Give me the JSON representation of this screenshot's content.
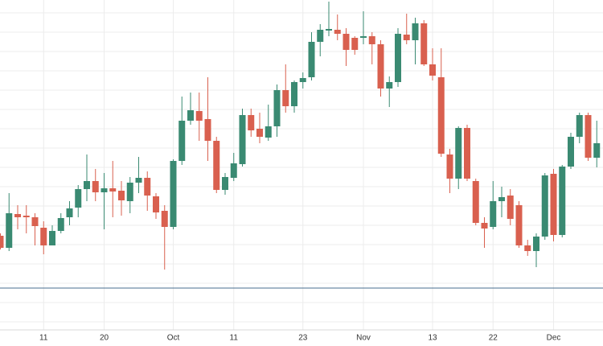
{
  "chart_data": {
    "type": "candlestick",
    "categories": [
      null,
      null,
      null,
      null,
      null,
      "11",
      null,
      null,
      null,
      null,
      null,
      null,
      "20",
      null,
      null,
      null,
      null,
      null,
      null,
      null,
      "Oct",
      null,
      null,
      null,
      null,
      null,
      null,
      "11",
      null,
      null,
      null,
      null,
      null,
      null,
      null,
      "23",
      null,
      null,
      null,
      null,
      null,
      null,
      "Nov",
      null,
      null,
      null,
      null,
      null,
      null,
      null,
      "13",
      null,
      null,
      null,
      null,
      null,
      null,
      "22",
      null,
      null,
      null,
      null,
      null,
      null,
      "Dec",
      null,
      null,
      null,
      null,
      null
    ],
    "open": [
      117,
      102,
      144,
      142,
      140,
      127,
      105,
      123,
      140,
      152,
      175,
      185,
      171,
      176,
      173,
      160,
      183,
      189,
      166,
      148,
      128,
      210,
      260,
      272,
      262,
      235,
      174,
      189,
      206,
      267,
      250,
      239,
      253,
      298,
      278,
      308,
      314,
      358,
      372,
      373,
      368,
      363,
      363,
      365,
      355,
      300,
      308,
      367,
      360,
      381,
      330,
      314,
      218,
      188,
      251,
      185,
      133,
      128,
      160,
      167,
      155,
      105,
      98,
      116,
      194,
      118,
      203,
      240,
      267,
      214
    ],
    "high": [
      120,
      170,
      155,
      155,
      145,
      135,
      130,
      145,
      160,
      180,
      218,
      200,
      195,
      210,
      185,
      190,
      215,
      197,
      170,
      155,
      212,
      290,
      295,
      295,
      314,
      240,
      195,
      220,
      275,
      275,
      270,
      280,
      305,
      330,
      310,
      320,
      370,
      380,
      408,
      392,
      375,
      365,
      396,
      370,
      360,
      315,
      375,
      393,
      388,
      385,
      350,
      350,
      225,
      253,
      255,
      188,
      140,
      185,
      178,
      175,
      160,
      112,
      120,
      195,
      200,
      205,
      245,
      270,
      270,
      260
    ],
    "low": [
      100,
      98,
      125,
      120,
      105,
      94,
      105,
      120,
      130,
      140,
      160,
      160,
      125,
      140,
      142,
      145,
      170,
      148,
      138,
      75,
      125,
      205,
      255,
      235,
      210,
      170,
      168,
      185,
      203,
      240,
      232,
      235,
      240,
      270,
      270,
      300,
      310,
      340,
      365,
      360,
      328,
      342,
      355,
      330,
      290,
      277,
      302,
      355,
      330,
      328,
      310,
      215,
      170,
      175,
      185,
      130,
      102,
      125,
      140,
      130,
      102,
      92,
      78,
      112,
      110,
      115,
      200,
      232,
      210,
      202
    ],
    "close": [
      102,
      145,
      140,
      140,
      129,
      105,
      123,
      139,
      151,
      175,
      185,
      171,
      176,
      172,
      161,
      183,
      189,
      167,
      146,
      128,
      210,
      260,
      273,
      260,
      235,
      174,
      190,
      207,
      267,
      248,
      240,
      253,
      298,
      278,
      308,
      313,
      358,
      373,
      374,
      368,
      348,
      348,
      365,
      355,
      300,
      308,
      368,
      360,
      381,
      330,
      316,
      219,
      188,
      251,
      188,
      133,
      126,
      160,
      165,
      138,
      105,
      98,
      116,
      192,
      118,
      203,
      240,
      267,
      214,
      232
    ],
    "up_color": "#3a8a72",
    "down_color": "#d9604f",
    "ylim": [
      0,
      410
    ],
    "yticks": [
      10,
      34,
      58,
      82,
      106,
      130,
      154,
      178,
      202,
      226,
      250,
      274,
      298,
      322,
      346,
      370,
      394
    ],
    "grid": true,
    "reference_line": 52,
    "reference_color": "#4a6f8f"
  }
}
